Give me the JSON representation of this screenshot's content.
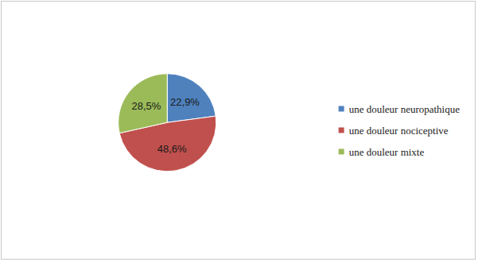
{
  "chart_data": {
    "type": "pie",
    "categories": [
      "une douleur neuropathique",
      "une douleur nociceptive",
      "une douleur mixte"
    ],
    "values": [
      22.9,
      48.6,
      28.5
    ],
    "value_labels": [
      "22,9%",
      "48,6%",
      "28,5%"
    ],
    "colors": [
      "#4f81bd",
      "#c0504d",
      "#9bbb59"
    ],
    "data_labels": true,
    "legend": "right"
  }
}
